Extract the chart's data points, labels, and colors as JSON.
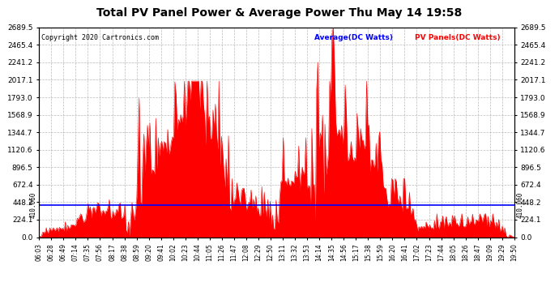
{
  "title": "Total PV Panel Power & Average Power Thu May 14 19:58",
  "copyright": "Copyright 2020 Cartronics.com",
  "legend_avg": "Average(DC Watts)",
  "legend_pv": "PV Panels(DC Watts)",
  "avg_value": 410.06,
  "y_max": 2689.5,
  "y_min": 0.0,
  "y_ticks": [
    0.0,
    224.1,
    448.2,
    672.4,
    896.5,
    1120.6,
    1344.7,
    1568.9,
    1793.0,
    2017.1,
    2241.2,
    2465.4,
    2689.5
  ],
  "x_tick_labels": [
    "06:03",
    "06:28",
    "06:49",
    "07:14",
    "07:35",
    "07:56",
    "08:17",
    "08:38",
    "08:59",
    "09:20",
    "09:41",
    "10:02",
    "10:23",
    "10:44",
    "11:05",
    "11:26",
    "11:47",
    "12:08",
    "12:29",
    "12:50",
    "13:11",
    "13:32",
    "13:53",
    "14:14",
    "14:35",
    "14:56",
    "15:17",
    "15:38",
    "15:59",
    "16:20",
    "16:41",
    "17:02",
    "17:23",
    "17:44",
    "18:05",
    "18:26",
    "18:47",
    "19:09",
    "19:29",
    "19:50"
  ],
  "bg_color": "#ffffff",
  "plot_bg": "#ffffff",
  "grid_color": "#aaaaaa",
  "fill_color": "#ff0000",
  "line_color": "#ff0000",
  "avg_line_color": "#0000ff",
  "title_color": "#000000",
  "copyright_color": "#000000",
  "legend_avg_color": "#0000ff",
  "legend_pv_color": "#ff0000"
}
